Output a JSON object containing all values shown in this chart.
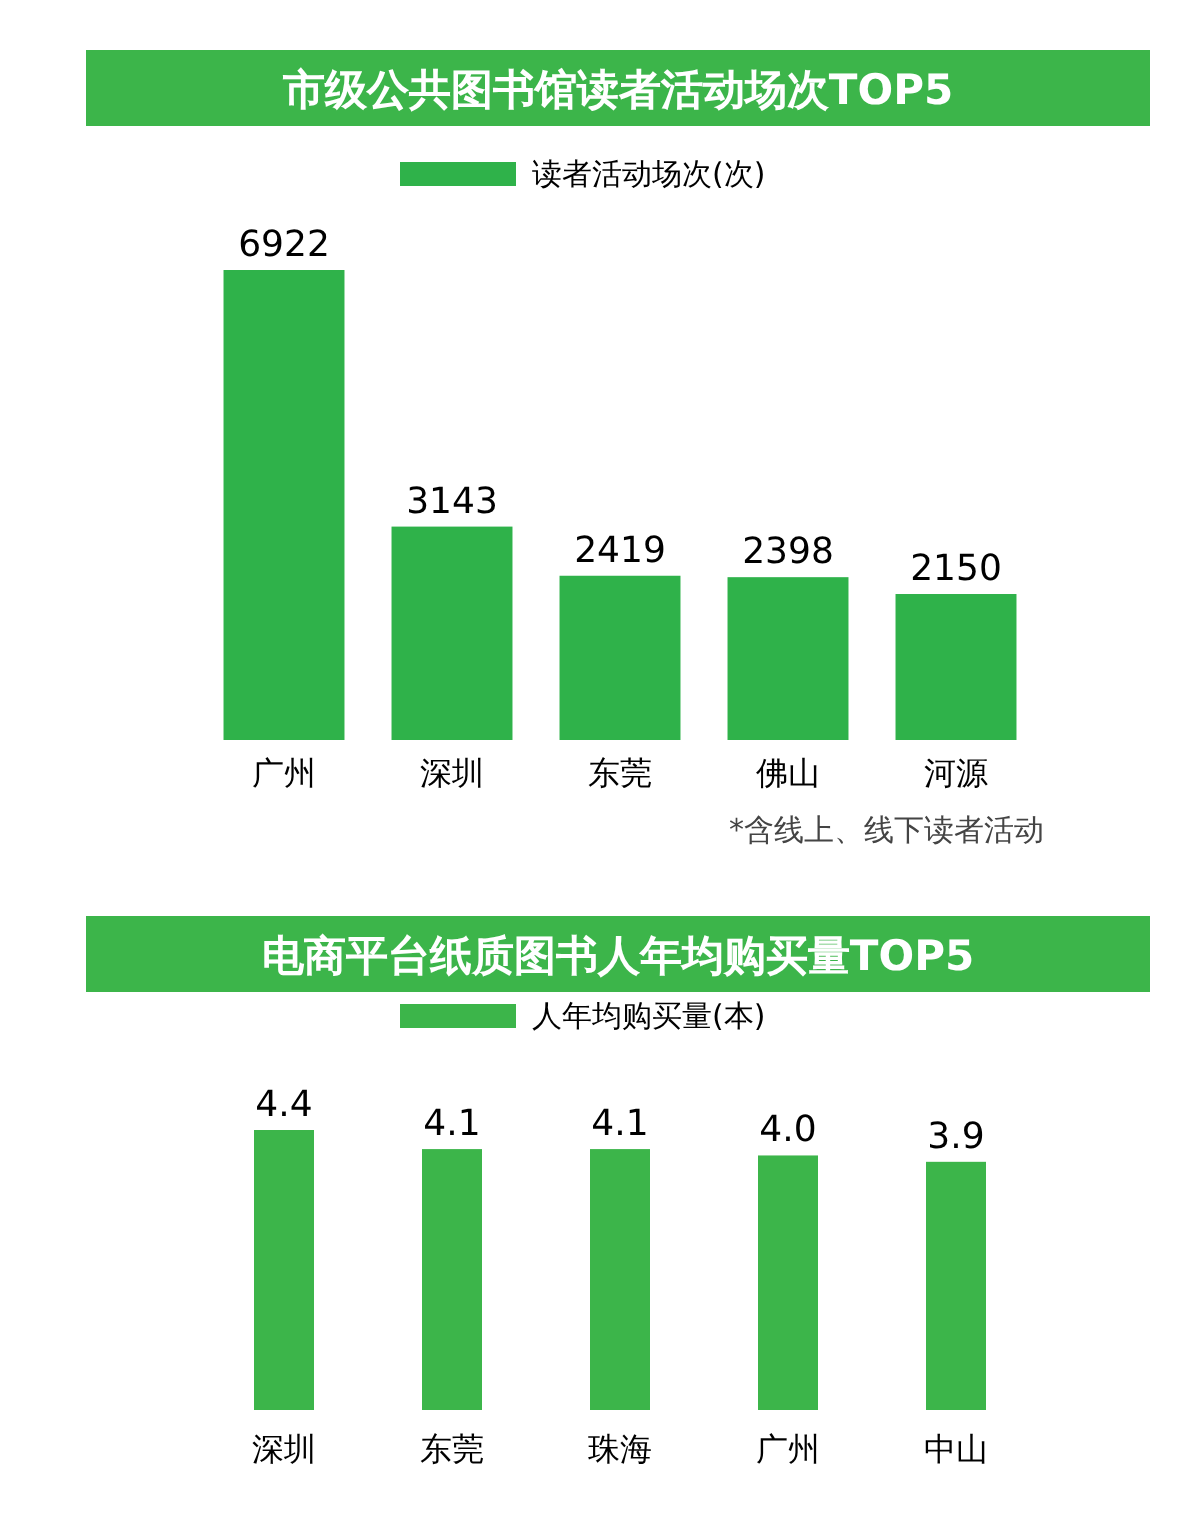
{
  "chart_data": [
    {
      "type": "bar",
      "title": "市级公共图书馆读者活动场次TOP5",
      "categories": [
        "广州",
        "深圳",
        "东莞",
        "佛山",
        "河源"
      ],
      "series": [
        {
          "name": "读者活动场次(次)",
          "color": "#2fb24a",
          "values": [
            6922,
            3143,
            2419,
            2398,
            2150
          ]
        }
      ],
      "data_labels": true,
      "legend": "top",
      "annotations": [
        "*含线上、线下读者活动"
      ]
    },
    {
      "type": "bar",
      "title": "电商平台纸质图书人年均购买量TOP5",
      "categories": [
        "深圳",
        "东莞",
        "珠海",
        "广州",
        "中山"
      ],
      "series": [
        {
          "name": "人年均购买量(本)",
          "color": "#3cb54a",
          "values": [
            4.4,
            4.1,
            4.1,
            4.0,
            3.9
          ],
          "value_labels": [
            "4.4",
            "4.1",
            "4.1",
            "4.0",
            "3.9"
          ]
        }
      ],
      "legend": "top"
    }
  ]
}
